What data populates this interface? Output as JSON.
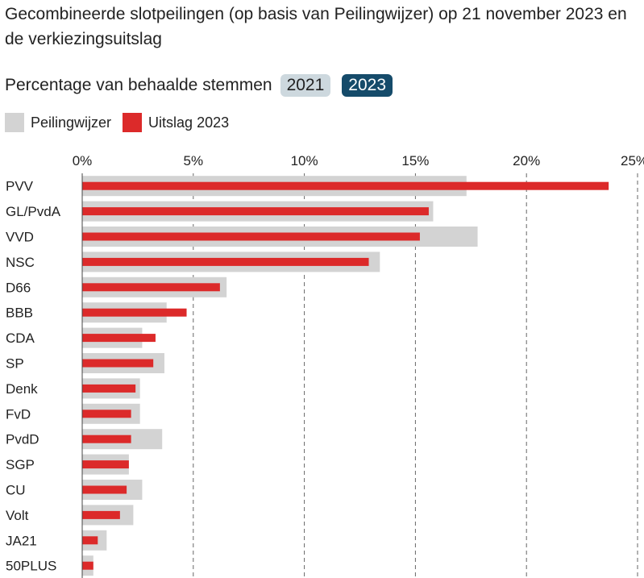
{
  "title": "Gecombineerde slotpeilingen (op basis van Peilingwijzer) op 21 november 2023 en de verkiezingsuitslag",
  "subtitle": "Percentage van behaalde stemmen",
  "year_toggle": [
    {
      "label": "2021",
      "active": false
    },
    {
      "label": "2023",
      "active": true
    }
  ],
  "colors": {
    "peilingwijzer": "#d3d3d3",
    "uitslag": "#dc2a2a",
    "toggle_active": "#154b6a",
    "toggle_inactive": "#cdd8de"
  },
  "chart_data": {
    "type": "bar",
    "orientation": "horizontal",
    "title": "Gecombineerde slotpeilingen (op basis van Peilingwijzer) op 21 november 2023 en de verkiezingsuitslag",
    "xlabel": "Percentage van behaalde stemmen",
    "xlim": [
      0,
      25
    ],
    "xticks": [
      "0%",
      "5%",
      "10%",
      "15%",
      "20%",
      "25%"
    ],
    "grid": true,
    "legend": "top-left",
    "categories": [
      "PVV",
      "GL/PvdA",
      "VVD",
      "NSC",
      "D66",
      "BBB",
      "CDA",
      "SP",
      "Denk",
      "FvD",
      "PvdD",
      "SGP",
      "CU",
      "Volt",
      "JA21",
      "50PLUS"
    ],
    "series": [
      {
        "name": "Peilingwijzer",
        "values": [
          17.3,
          15.8,
          17.8,
          13.4,
          6.5,
          3.8,
          2.7,
          3.7,
          2.6,
          2.6,
          3.6,
          2.1,
          2.7,
          2.3,
          1.1,
          0.5
        ]
      },
      {
        "name": "Uitslag 2023",
        "values": [
          23.7,
          15.6,
          15.2,
          12.9,
          6.2,
          4.7,
          3.3,
          3.2,
          2.4,
          2.2,
          2.2,
          2.1,
          2.0,
          1.7,
          0.7,
          0.5
        ]
      }
    ]
  }
}
